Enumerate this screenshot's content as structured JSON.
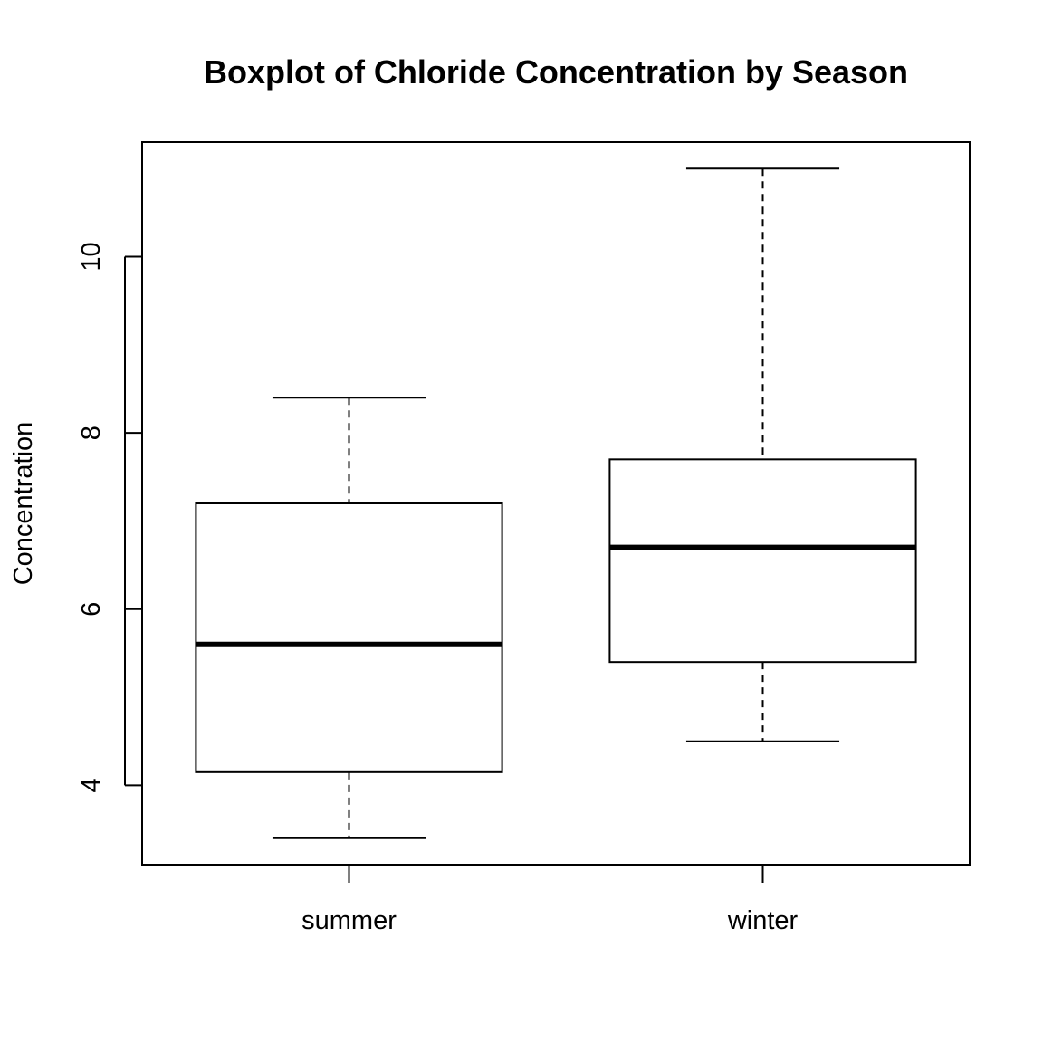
{
  "chart_data": {
    "type": "box",
    "title": "Boxplot of Chloride Concentration by Season",
    "xlabel": "",
    "ylabel": "Concentration",
    "ylim": [
      3.1,
      11.3
    ],
    "yticks": [
      4,
      6,
      8,
      10
    ],
    "categories": [
      "summer",
      "winter"
    ],
    "boxes": [
      {
        "category": "summer",
        "whisker_low": 3.4,
        "q1": 4.15,
        "median": 5.6,
        "q3": 7.2,
        "whisker_high": 8.4
      },
      {
        "category": "winter",
        "whisker_low": 4.5,
        "q1": 5.4,
        "median": 6.7,
        "q3": 7.7,
        "whisker_high": 11.0
      }
    ],
    "grid": false
  }
}
